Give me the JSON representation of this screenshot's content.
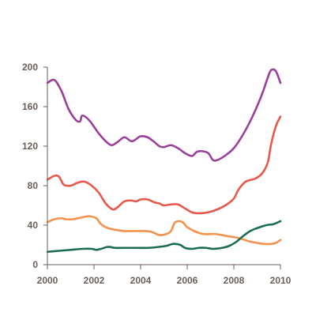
{
  "chart_data": {
    "type": "line",
    "title": "",
    "xlabel": "",
    "ylabel": "",
    "xlim": [
      2000,
      2010
    ],
    "ylim": [
      0,
      200
    ],
    "x_ticks": [
      2000,
      2002,
      2004,
      2006,
      2008,
      2010
    ],
    "y_ticks": [
      0,
      40,
      80,
      120,
      160,
      200
    ],
    "x_tick_labels": [
      "2000",
      "2002",
      "2004",
      "2006",
      "2008",
      "2010"
    ],
    "y_tick_labels": [
      "0",
      "40",
      "80",
      "120",
      "160",
      "200"
    ],
    "grid": false,
    "legend": "none",
    "series": [
      {
        "color": "#9b3f9a",
        "points": [
          [
            2000.0,
            184
          ],
          [
            2000.3,
            187
          ],
          [
            2000.6,
            176
          ],
          [
            2000.9,
            158
          ],
          [
            2001.2,
            147
          ],
          [
            2001.4,
            145
          ],
          [
            2001.5,
            151
          ],
          [
            2001.8,
            146
          ],
          [
            2002.2,
            133
          ],
          [
            2002.5,
            125
          ],
          [
            2002.75,
            121
          ],
          [
            2003.0,
            124
          ],
          [
            2003.3,
            129
          ],
          [
            2003.6,
            125
          ],
          [
            2003.8,
            127
          ],
          [
            2004.0,
            130
          ],
          [
            2004.3,
            129
          ],
          [
            2004.6,
            124
          ],
          [
            2004.8,
            120
          ],
          [
            2005.0,
            119
          ],
          [
            2005.3,
            121
          ],
          [
            2005.6,
            118
          ],
          [
            2005.9,
            113
          ],
          [
            2006.2,
            110
          ],
          [
            2006.4,
            114
          ],
          [
            2006.6,
            115
          ],
          [
            2006.9,
            113
          ],
          [
            2007.1,
            106
          ],
          [
            2007.3,
            106
          ],
          [
            2007.6,
            110
          ],
          [
            2008.0,
            118
          ],
          [
            2008.4,
            132
          ],
          [
            2008.8,
            150
          ],
          [
            2009.2,
            172
          ],
          [
            2009.45,
            189
          ],
          [
            2009.6,
            197
          ],
          [
            2009.8,
            196
          ],
          [
            2010.0,
            184
          ]
        ]
      },
      {
        "color": "#e8584a",
        "points": [
          [
            2000.0,
            86
          ],
          [
            2000.3,
            90
          ],
          [
            2000.5,
            89
          ],
          [
            2000.7,
            81
          ],
          [
            2001.0,
            80
          ],
          [
            2001.3,
            83
          ],
          [
            2001.6,
            84
          ],
          [
            2001.9,
            80
          ],
          [
            2002.2,
            73
          ],
          [
            2002.5,
            62
          ],
          [
            2002.8,
            56
          ],
          [
            2003.0,
            58
          ],
          [
            2003.3,
            64
          ],
          [
            2003.6,
            65
          ],
          [
            2003.8,
            64
          ],
          [
            2004.0,
            66
          ],
          [
            2004.3,
            66
          ],
          [
            2004.6,
            63
          ],
          [
            2004.8,
            62
          ],
          [
            2005.0,
            60
          ],
          [
            2005.3,
            61
          ],
          [
            2005.6,
            61
          ],
          [
            2005.9,
            57
          ],
          [
            2006.2,
            53
          ],
          [
            2006.5,
            52
          ],
          [
            2006.9,
            53
          ],
          [
            2007.3,
            56
          ],
          [
            2007.7,
            61
          ],
          [
            2008.0,
            67
          ],
          [
            2008.2,
            76
          ],
          [
            2008.5,
            84
          ],
          [
            2008.9,
            87
          ],
          [
            2009.2,
            92
          ],
          [
            2009.45,
            103
          ],
          [
            2009.6,
            122
          ],
          [
            2009.8,
            140
          ],
          [
            2010.0,
            150
          ]
        ]
      },
      {
        "color": "#f4914a",
        "points": [
          [
            2000.0,
            43
          ],
          [
            2000.3,
            46
          ],
          [
            2000.6,
            47
          ],
          [
            2000.8,
            46
          ],
          [
            2001.1,
            46
          ],
          [
            2001.5,
            48
          ],
          [
            2001.8,
            49
          ],
          [
            2002.1,
            47
          ],
          [
            2002.3,
            41
          ],
          [
            2002.6,
            37
          ],
          [
            2003.0,
            35
          ],
          [
            2003.3,
            34
          ],
          [
            2003.6,
            34
          ],
          [
            2003.9,
            34
          ],
          [
            2004.2,
            34
          ],
          [
            2004.5,
            33
          ],
          [
            2004.8,
            30
          ],
          [
            2005.1,
            31
          ],
          [
            2005.3,
            34
          ],
          [
            2005.45,
            42
          ],
          [
            2005.6,
            44
          ],
          [
            2005.8,
            43
          ],
          [
            2006.0,
            38
          ],
          [
            2006.3,
            34
          ],
          [
            2006.7,
            31
          ],
          [
            2007.2,
            31
          ],
          [
            2007.7,
            29
          ],
          [
            2008.2,
            27
          ],
          [
            2008.6,
            24
          ],
          [
            2009.0,
            22
          ],
          [
            2009.3,
            21
          ],
          [
            2009.6,
            21
          ],
          [
            2009.8,
            22
          ],
          [
            2010.0,
            25
          ]
        ]
      },
      {
        "color": "#1b6b55",
        "points": [
          [
            2000.0,
            13
          ],
          [
            2000.5,
            14
          ],
          [
            2001.0,
            15
          ],
          [
            2001.5,
            16
          ],
          [
            2001.9,
            16
          ],
          [
            2002.1,
            15
          ],
          [
            2002.3,
            16
          ],
          [
            2002.6,
            18
          ],
          [
            2002.9,
            17
          ],
          [
            2003.3,
            17
          ],
          [
            2003.8,
            17
          ],
          [
            2004.3,
            17
          ],
          [
            2004.8,
            18
          ],
          [
            2005.1,
            19
          ],
          [
            2005.4,
            21
          ],
          [
            2005.7,
            20
          ],
          [
            2005.9,
            17
          ],
          [
            2006.2,
            16
          ],
          [
            2006.5,
            17
          ],
          [
            2006.8,
            17
          ],
          [
            2007.1,
            16
          ],
          [
            2007.5,
            17
          ],
          [
            2007.8,
            19
          ],
          [
            2008.1,
            23
          ],
          [
            2008.4,
            29
          ],
          [
            2008.7,
            34
          ],
          [
            2009.0,
            37
          ],
          [
            2009.4,
            40
          ],
          [
            2009.7,
            41
          ],
          [
            2010.0,
            44
          ]
        ]
      }
    ]
  }
}
